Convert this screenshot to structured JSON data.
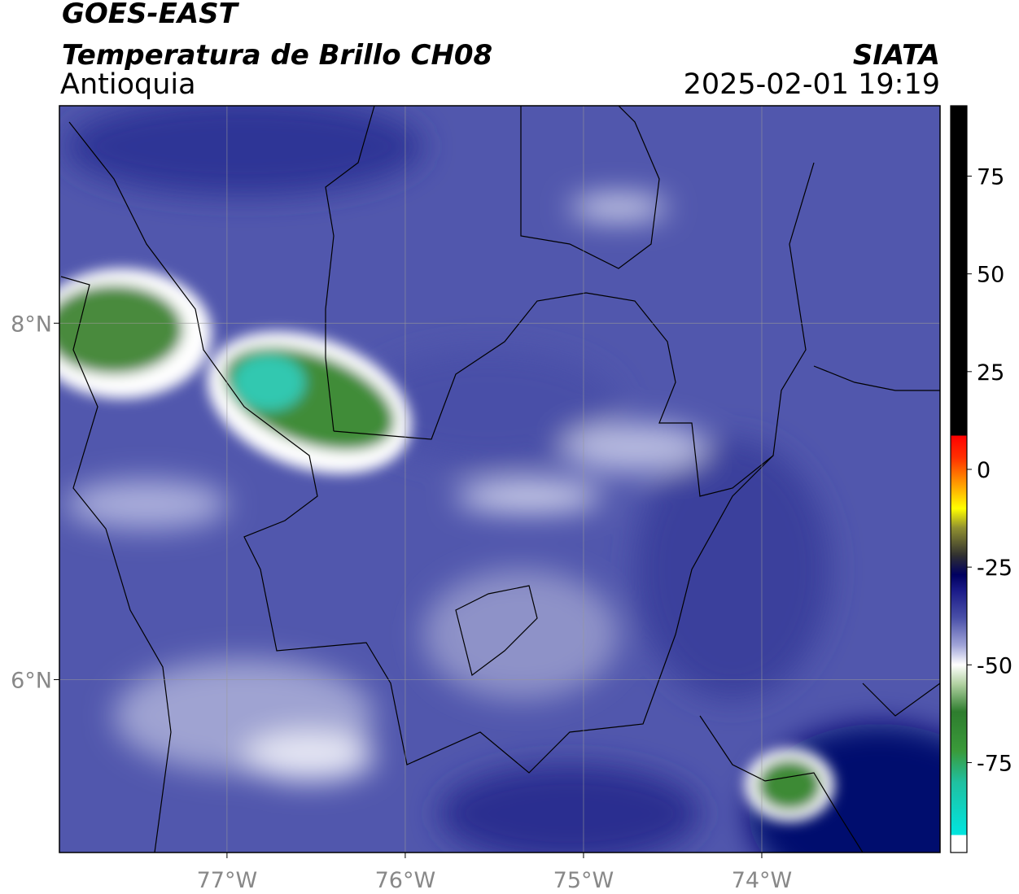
{
  "header": {
    "title": "GOES-EAST",
    "subtitle": "Temperatura de Brillo CH08",
    "region": "Antioquia",
    "source": "SIATA",
    "datetime": "2025-02-01 19:19"
  },
  "map": {
    "xlim": [
      -77.94,
      -73.0
    ],
    "ylim": [
      5.03,
      9.22
    ],
    "xticks": [
      {
        "value": -77,
        "label": "77°W"
      },
      {
        "value": -76,
        "label": "76°W"
      },
      {
        "value": -75,
        "label": "75°W"
      },
      {
        "value": -74,
        "label": "74°W"
      }
    ],
    "yticks": [
      {
        "value": 8,
        "label": "8°N"
      },
      {
        "value": 6,
        "label": "6°N"
      }
    ],
    "grid": true
  },
  "colorbar": {
    "lim": [
      -98,
      93
    ],
    "ticks": [
      75,
      50,
      25,
      0,
      -25,
      -50,
      -75
    ],
    "stops": [
      {
        "value": 93,
        "color": "#000000"
      },
      {
        "value": 8.6,
        "color": "#000000"
      },
      {
        "value": 8.6,
        "color": "#ff0000"
      },
      {
        "value": 3,
        "color": "#ff3000"
      },
      {
        "value": -3,
        "color": "#ff9000"
      },
      {
        "value": -10,
        "color": "#ffff00"
      },
      {
        "value": -15,
        "color": "#909030"
      },
      {
        "value": -22,
        "color": "#303030"
      },
      {
        "value": -27,
        "color": "#000060"
      },
      {
        "value": -31,
        "color": "#1a1a88"
      },
      {
        "value": -38,
        "color": "#4a50a8"
      },
      {
        "value": -45,
        "color": "#a0a4d8"
      },
      {
        "value": -50,
        "color": "#ffffff"
      },
      {
        "value": -55,
        "color": "#b0d0a0"
      },
      {
        "value": -62,
        "color": "#2e7d2e"
      },
      {
        "value": -72,
        "color": "#3a9a3a"
      },
      {
        "value": -80,
        "color": "#20c0a0"
      },
      {
        "value": -93.5,
        "color": "#00e5e0"
      },
      {
        "value": -93.5,
        "color": "#ffffff"
      },
      {
        "value": -98,
        "color": "#ffffff"
      }
    ]
  }
}
